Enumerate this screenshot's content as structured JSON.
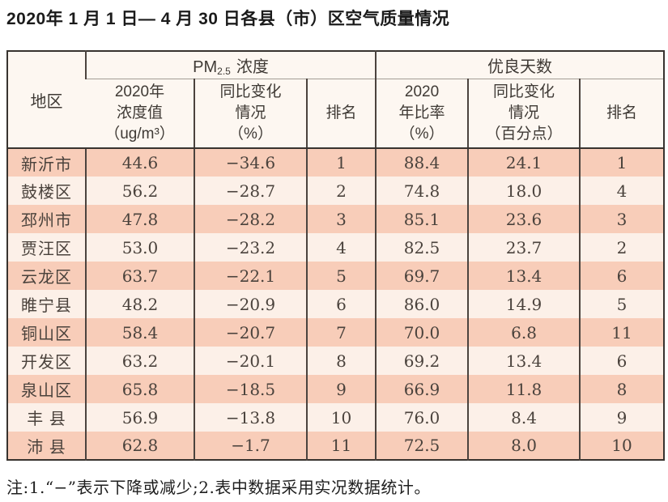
{
  "title": "2020年 1 月 1 日— 4 月 30 日各县（市）区空气质量情况",
  "table": {
    "corner_header": "地区",
    "groups": {
      "pm": {
        "prefix": "PM",
        "sub": "2.5",
        "suffix": "浓度"
      },
      "good_days": "优良天数"
    },
    "sub_headers": {
      "pm_value": "2020年\n浓度值\n（ug/m³）",
      "pm_change": "同比变化\n情况\n（%）",
      "pm_rank": "排名",
      "good_ratio": "2020\n年比率\n（%）",
      "good_change": "同比变化\n情况\n（百分点）",
      "good_rank": "排名"
    },
    "rows": [
      {
        "region": "新沂市",
        "pm_value": "44.6",
        "pm_change": "−34.6",
        "pm_rank": "1",
        "good_ratio": "88.4",
        "good_change": "24.1",
        "good_rank": "1"
      },
      {
        "region": "鼓楼区",
        "pm_value": "56.2",
        "pm_change": "−28.7",
        "pm_rank": "2",
        "good_ratio": "74.8",
        "good_change": "18.0",
        "good_rank": "4"
      },
      {
        "region": "邳州市",
        "pm_value": "47.8",
        "pm_change": "−28.2",
        "pm_rank": "3",
        "good_ratio": "85.1",
        "good_change": "23.6",
        "good_rank": "3"
      },
      {
        "region": "贾汪区",
        "pm_value": "53.0",
        "pm_change": "−23.2",
        "pm_rank": "4",
        "good_ratio": "82.5",
        "good_change": "23.7",
        "good_rank": "2"
      },
      {
        "region": "云龙区",
        "pm_value": "63.7",
        "pm_change": "−22.1",
        "pm_rank": "5",
        "good_ratio": "69.7",
        "good_change": "13.4",
        "good_rank": "6"
      },
      {
        "region": "睢宁县",
        "pm_value": "48.2",
        "pm_change": "−20.9",
        "pm_rank": "6",
        "good_ratio": "86.0",
        "good_change": "14.9",
        "good_rank": "5"
      },
      {
        "region": "铜山区",
        "pm_value": "58.4",
        "pm_change": "−20.7",
        "pm_rank": "7",
        "good_ratio": "70.0",
        "good_change": "6.8",
        "good_rank": "11"
      },
      {
        "region": "开发区",
        "pm_value": "63.2",
        "pm_change": "−20.1",
        "pm_rank": "8",
        "good_ratio": "69.2",
        "good_change": "13.4",
        "good_rank": "6"
      },
      {
        "region": "泉山区",
        "pm_value": "65.8",
        "pm_change": "−18.5",
        "pm_rank": "9",
        "good_ratio": "66.9",
        "good_change": "11.8",
        "good_rank": "8"
      },
      {
        "region": "丰 县",
        "pm_value": "56.9",
        "pm_change": "−13.8",
        "pm_rank": "10",
        "good_ratio": "76.0",
        "good_change": "8.4",
        "good_rank": "9"
      },
      {
        "region": "沛 县",
        "pm_value": "62.8",
        "pm_change": "−1.7",
        "pm_rank": "11",
        "good_ratio": "72.5",
        "good_change": "8.0",
        "good_rank": "10"
      }
    ]
  },
  "note": "注:1.“−”表示下降或减少;2.表中数据采用实况数据统计。",
  "colors": {
    "row_odd": "#f8cdb9",
    "row_even": "#fcf0e8",
    "header_bg": "#fdf7f1",
    "border_dark": "#38332f",
    "grid_line": "#4b433e",
    "text": "#474039"
  }
}
